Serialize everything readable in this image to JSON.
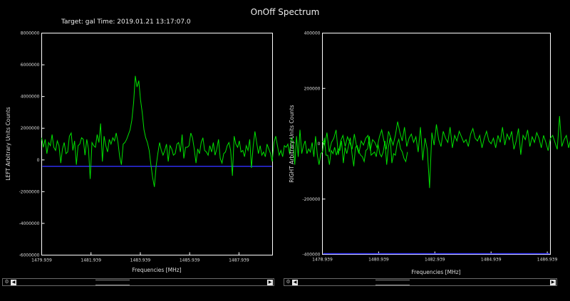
{
  "window": {
    "title": "OnOff Spectrum",
    "subtitle": "Target: gal  Time: 2019.01.21 13:17:07.0"
  },
  "colors": {
    "signal": "#00e000",
    "baseline": "#3030ff",
    "frame": "#ffffff"
  },
  "icons": {
    "gear": "gear-icon",
    "left": "arrow-left-icon",
    "right": "arrow-right-icon"
  },
  "chart_data": [
    {
      "type": "line",
      "xlabel": "Frequencies [MHz]",
      "ylabel": "LEFT Arbitrary Units Counts",
      "xlim": [
        1479.939,
        1489.3
      ],
      "ylim": [
        -6000000,
        8000000
      ],
      "x_ticks": [
        1479.939,
        1481.939,
        1483.939,
        1485.939,
        1487.939
      ],
      "x_tick_labels": [
        "1479.939",
        "1481.939",
        "1483.939",
        "1485.939",
        "1487.939"
      ],
      "y_ticks": [
        8000000,
        6000000,
        4000000,
        2000000,
        0,
        -2000000,
        -4000000,
        -6000000
      ],
      "y_tick_labels": [
        "8000000",
        "6000000",
        "4000000",
        "2000000",
        "0",
        "-2000000",
        "-4000000",
        "-6000000"
      ],
      "baseline": -400000,
      "series": [
        {
          "x_start": 1479.939,
          "x_step": 0.0703,
          "values": [
            1400000,
            800000,
            1300000,
            400000,
            1100000,
            900000,
            1600000,
            800000,
            600000,
            1200000,
            900000,
            -200000,
            700000,
            1100000,
            400000,
            500000,
            1500000,
            1700000,
            600000,
            1200000,
            -300000,
            900000,
            1000000,
            1400000,
            1300000,
            300000,
            1300000,
            700000,
            -1200000,
            1100000,
            900000,
            800000,
            1600000,
            1100000,
            2300000,
            -100000,
            1500000,
            900000,
            500000,
            1300000,
            1000000,
            1400000,
            1200000,
            1700000,
            1100000,
            200000,
            -300000,
            1000000,
            1100000,
            1300000,
            1600000,
            1900000,
            2500000,
            3600000,
            5300000,
            4600000,
            5000000,
            3800000,
            3000000,
            1900000,
            1400000,
            1100000,
            600000,
            -300000,
            -1100000,
            -1700000,
            -400000,
            400000,
            1100000,
            600000,
            300000,
            600000,
            1000000,
            -100000,
            900000,
            700000,
            300000,
            400000,
            1000000,
            1100000,
            500000,
            1600000,
            100000,
            800000,
            800000,
            900000,
            1700000,
            1400000,
            700000,
            -200000,
            700000,
            400000,
            1100000,
            1400000,
            600000,
            500000,
            300000,
            900000,
            500000,
            1100000,
            300000,
            700000,
            1300000,
            100000,
            -200000,
            400000,
            500000,
            900000,
            1100000,
            600000,
            -1000000,
            1500000,
            1000000,
            800000,
            1200000,
            500000,
            600000,
            200000,
            900000,
            600000,
            1300000,
            -500000,
            900000,
            1800000,
            1100000,
            400000,
            900000,
            300000,
            500000,
            200000,
            1000000,
            700000,
            400000,
            -100000,
            1100000,
            1500000,
            900000,
            300000,
            600000,
            200000,
            900000,
            800000,
            1000000,
            400000,
            1400000,
            1200000,
            -300000,
            1500000,
            200000,
            1900000,
            400000,
            900000,
            1200000,
            400000,
            700000,
            500000,
            1100000,
            200000,
            1500000,
            300000,
            -300000,
            400000,
            500000,
            1400000,
            300000,
            300000,
            -300000,
            600000,
            400000,
            800000,
            300000,
            700000,
            600000,
            1200000,
            -200000,
            800000,
            400000,
            900000,
            1400000,
            400000,
            -400000,
            800000,
            900000,
            500000,
            300000,
            200000,
            -100000,
            600000,
            700000,
            1500000,
            300000,
            400000,
            500000,
            200000,
            1000000,
            400000,
            200000,
            500000,
            1200000,
            -300000,
            800000,
            1400000,
            -200000,
            400000,
            300000,
            1000000,
            1300000,
            700000,
            500000,
            100000,
            -100000,
            500000
          ]
        }
      ]
    },
    {
      "type": "line",
      "xlabel": "Frequencies [MHz]",
      "ylabel": "RIGHT Arbitrary Units Counts",
      "xlim": [
        1478.939,
        1487.05
      ],
      "ylim": [
        -400000,
        400000
      ],
      "x_ticks": [
        1478.939,
        1480.939,
        1482.939,
        1484.939,
        1486.939
      ],
      "x_tick_labels": [
        "1478.939",
        "1480.939",
        "1482.939",
        "1484.939",
        "1486.939"
      ],
      "y_ticks": [
        400000,
        200000,
        0,
        -200000,
        -400000
      ],
      "y_tick_labels": [
        "400000",
        "200000",
        "0",
        "-200000",
        "-400000"
      ],
      "baseline": -400000,
      "series": [
        {
          "x_start": 1478.939,
          "x_step": 0.0811,
          "values": [
            10000,
            -5000,
            40000,
            -30000,
            5000,
            20000,
            50000,
            -40000,
            10000,
            30000,
            -10000,
            25000,
            5000,
            -20000,
            35000,
            -10000,
            -35000,
            10000,
            -5000,
            20000,
            30000,
            -25000,
            15000,
            5000,
            -15000,
            25000,
            50000,
            10000,
            -20000,
            45000,
            20000,
            -5000,
            30000,
            80000,
            40000,
            10000,
            60000,
            -10000,
            20000,
            35000,
            5000,
            25000,
            -30000,
            60000,
            -60000,
            20000,
            -20000,
            -160000,
            40000,
            -5000,
            70000,
            15000,
            -10000,
            45000,
            20000,
            5000,
            60000,
            -15000,
            30000,
            10000,
            45000,
            25000,
            5000,
            15000,
            -10000,
            35000,
            55000,
            20000,
            10000,
            30000,
            -15000,
            20000,
            45000,
            10000,
            0,
            20000,
            -15000,
            30000,
            5000,
            60000,
            -5000,
            35000,
            15000,
            45000,
            -20000,
            10000,
            55000,
            -40000,
            30000,
            15000,
            50000,
            -10000,
            25000,
            5000,
            40000,
            20000,
            -15000,
            30000,
            5000,
            -25000,
            20000,
            30000,
            5000,
            -20000,
            100000,
            -10000,
            15000,
            30000,
            -15000,
            20000,
            10000
          ]
        }
      ]
    }
  ],
  "scrollbars": [
    {
      "left_arrow": "◀",
      "right_arrow": "▶"
    },
    {
      "left_arrow": "◀",
      "right_arrow": "▶"
    }
  ]
}
